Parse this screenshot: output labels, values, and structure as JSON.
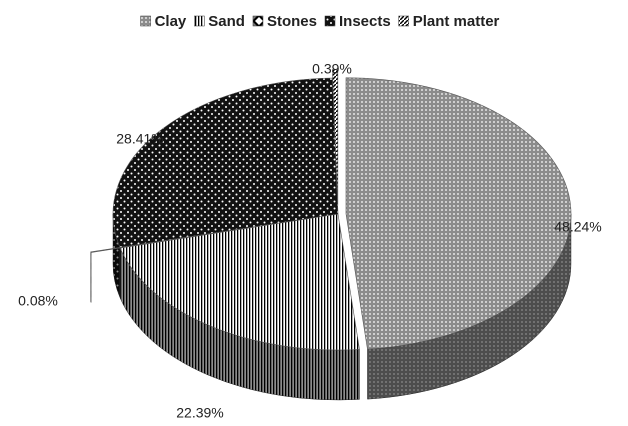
{
  "chart_data": {
    "type": "pie",
    "categories": [
      "Clay",
      "Sand",
      "Stones",
      "Insects",
      "Plant matter"
    ],
    "values": [
      48.24,
      22.39,
      0.08,
      28.41,
      0.39
    ],
    "value_labels": [
      "48.24%",
      "22.39%",
      "0.08%",
      "28.41%",
      "0.39%"
    ],
    "colors": [
      "#8c8c8c",
      "#ffffff",
      "#7a7a7a",
      "#111111",
      "#ffffff"
    ],
    "legend": "top"
  }
}
